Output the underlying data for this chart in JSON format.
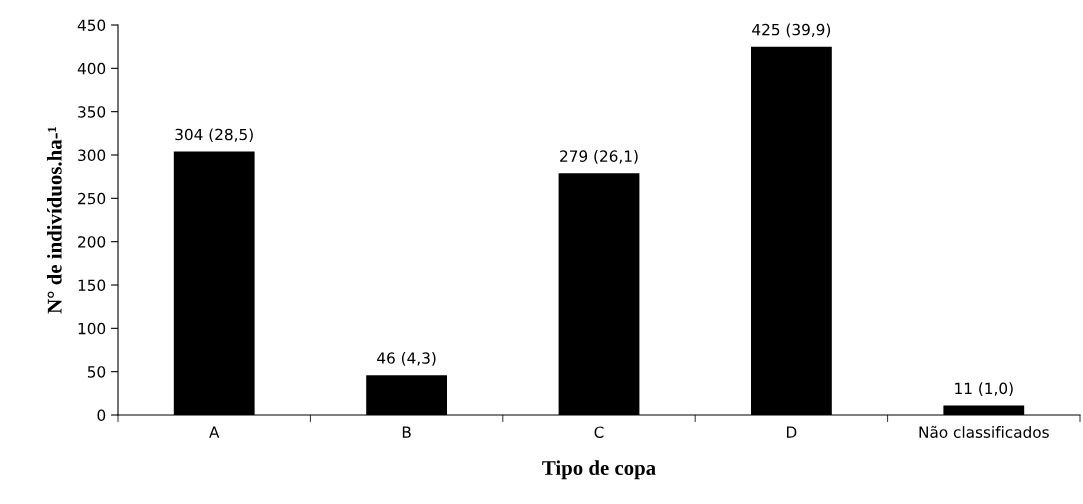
{
  "chart_data": {
    "type": "bar",
    "xlabel": "Tipo de copa",
    "ylabel": "N° de indivíduos.ha-¹",
    "categories": [
      "A",
      "B",
      "C",
      "D",
      "Não classificados"
    ],
    "values": [
      304,
      46,
      279,
      425,
      11
    ],
    "value_labels": [
      "304 (28,5)",
      "46 (4,3)",
      "279 (26,1)",
      "425 (39,9)",
      "11 (1,0)"
    ],
    "color": "#000000",
    "ylim": [
      0,
      450
    ],
    "yticks": [
      0,
      50,
      100,
      150,
      200,
      250,
      300,
      350,
      400,
      450
    ],
    "grid": false,
    "legend": false
  }
}
